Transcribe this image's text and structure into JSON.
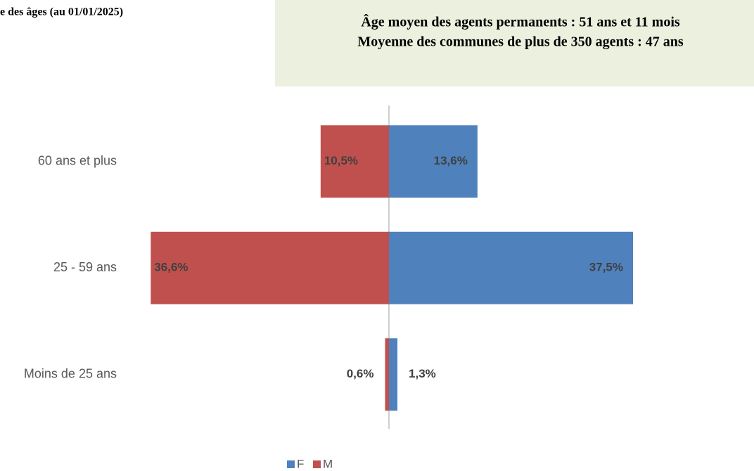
{
  "chart_data": {
    "type": "pyramid",
    "title": "e des âges (au 01/01/2025)",
    "annotations": [
      "Âge moyen des agents permanents : 51 ans et 11 mois",
      "Moyenne des communes de plus de 350 agents : 47 ans"
    ],
    "categories": [
      "60 ans et plus",
      "25 - 59 ans",
      "Moins de 25 ans"
    ],
    "series": [
      {
        "name": "F",
        "color": "#4f81bd",
        "values": [
          13.6,
          37.5,
          1.3
        ],
        "value_labels": [
          "13,6%",
          "37,5%",
          "1,3%"
        ]
      },
      {
        "name": "M",
        "color": "#c0504d",
        "values": [
          10.5,
          36.6,
          0.6
        ],
        "value_labels": [
          "10,5%",
          "36,6%",
          "0,6%"
        ]
      }
    ]
  }
}
